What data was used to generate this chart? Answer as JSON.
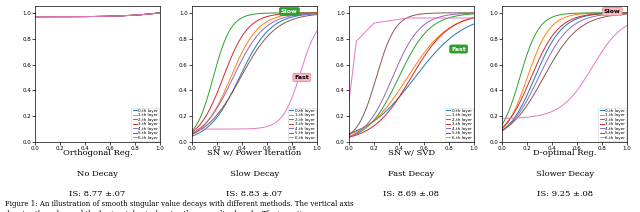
{
  "subplot_titles": [
    [
      "Orthogonal Reg.",
      "No Decay",
      "IS: 8.77 ±.07"
    ],
    [
      "SN w/ Power Iteration",
      "Slow Decay",
      "IS: 8.83 ±.07"
    ],
    [
      "SN w/ SVD",
      "Fast Decay",
      "IS: 8.69 ±.08"
    ],
    [
      "D-optimal Reg.",
      "Slower Decay",
      "IS: 9.25 ±.08"
    ]
  ],
  "layer_colors": [
    "#1f77b4",
    "#ff7f0e",
    "#2ca02c",
    "#d62728",
    "#9467bd",
    "#8c564b",
    "#e377c2"
  ],
  "layer_labels": [
    "0-th layer",
    "1-th layer",
    "2-th layer",
    "3-th layer",
    "4-th layer",
    "5-th layer",
    "6-th layer"
  ],
  "slow_facecolor": "#2ca02c",
  "slow_textcolor": "white",
  "fast_facecolor": "#ffb6c1",
  "fast_edgecolor": "#cc8888",
  "fast_textcolor": "black",
  "figsize": [
    6.4,
    2.12
  ],
  "dpi": 100,
  "caption_line1": "Figure 1: An illustration of smooth singular value decays with different methods. The vertical axis",
  "caption_line2": "denotes the value and the horizontal axis denotes the normalized rank.  The inception scores on"
}
